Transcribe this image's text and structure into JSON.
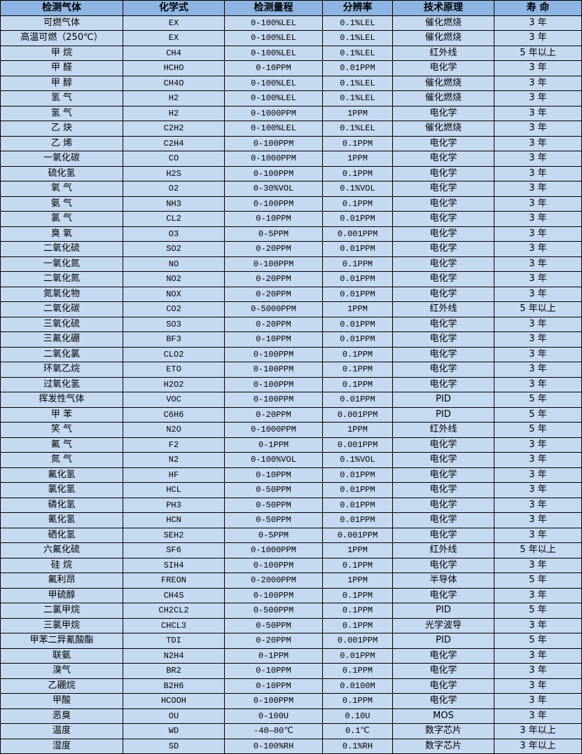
{
  "table": {
    "headers": [
      "检测气体",
      "化学式",
      "检测量程",
      "分辨率",
      "技术原理",
      "寿 命"
    ],
    "rows": [
      [
        "可燃气体",
        "EX",
        "0-100%LEL",
        "0.1%LEL",
        "催化燃烧",
        "3 年"
      ],
      [
        "高温可燃（250℃）",
        "EX",
        "0-100%LEL",
        "0.1%LEL",
        "催化燃烧",
        "3 年"
      ],
      [
        "甲 烷",
        "CH4",
        "0-100%LEL",
        "0.1%LEL",
        "红外线",
        "5 年以上"
      ],
      [
        "甲 醛",
        "HCHO",
        "0-10PPM",
        "0.01PPM",
        "电化学",
        "3 年"
      ],
      [
        "甲 醇",
        "CH4O",
        "0-100%LEL",
        "0.1%LEL",
        "催化燃烧",
        "3 年"
      ],
      [
        "氢 气",
        "H2",
        "0-100%LEL",
        "0.1%LEL",
        "催化燃烧",
        "3 年"
      ],
      [
        "氢 气",
        "H2",
        "0-1000PPM",
        "1PPM",
        "电化学",
        "3 年"
      ],
      [
        "乙 炔",
        "C2H2",
        "0-100%LEL",
        "0.1%LEL",
        "催化燃烧",
        "3 年"
      ],
      [
        "乙 烯",
        "C2H4",
        "0-100PPM",
        "0.1PPM",
        "电化学",
        "3 年"
      ],
      [
        "一氧化碳",
        "CO",
        "0-1000PPM",
        "1PPM",
        "电化学",
        "3 年"
      ],
      [
        "硫化氢",
        "H2S",
        "0-100PPM",
        "0.1PPM",
        "电化学",
        "3 年"
      ],
      [
        "氧 气",
        "O2",
        "0-30%VOL",
        "0.1%VOL",
        "电化学",
        "3 年"
      ],
      [
        "氨 气",
        "NH3",
        "0-100PPM",
        "0.1PPM",
        "电化学",
        "3 年"
      ],
      [
        "氯 气",
        "CL2",
        "0-10PPM",
        "0.01PPM",
        "电化学",
        "3 年"
      ],
      [
        "臭 氧",
        "O3",
        "0-5PPM",
        "0.001PPM",
        "电化学",
        "3 年"
      ],
      [
        "二氧化硫",
        "SO2",
        "0-20PPM",
        "0.01PPM",
        "电化学",
        "3 年"
      ],
      [
        "一氧化氮",
        "NO",
        "0-100PPM",
        "0.1PPM",
        "电化学",
        "3 年"
      ],
      [
        "二氧化氮",
        "NO2",
        "0-20PPM",
        "0.01PPM",
        "电化学",
        "3 年"
      ],
      [
        "氮氧化物",
        "NOX",
        "0-20PPM",
        "0.01PPM",
        "电化学",
        "3 年"
      ],
      [
        "二氧化碳",
        "CO2",
        "0-5000PPM",
        "1PPM",
        "红外线",
        "5 年以上"
      ],
      [
        "三氧化硫",
        "SO3",
        "0-20PPM",
        "0.01PPM",
        "电化学",
        "3 年"
      ],
      [
        "三氟化硼",
        "BF3",
        "0-10PPM",
        "0.01PPM",
        "电化学",
        "3 年"
      ],
      [
        "二氧化氯",
        "CLO2",
        "0-100PPM",
        "0.1PPM",
        "电化学",
        "3 年"
      ],
      [
        "环氧乙烷",
        "ETO",
        "0-100PPM",
        "0.1PPM",
        "电化学",
        "3 年"
      ],
      [
        "过氧化氢",
        "H2O2",
        "0-100PPM",
        "0.1PPM",
        "电化学",
        "3 年"
      ],
      [
        "挥发性气体",
        "VOC",
        "0-100PPM",
        "0.01PPM",
        "PID",
        "5 年"
      ],
      [
        "甲 苯",
        "C6H6",
        "0-20PPM",
        "0.001PPM",
        "PID",
        "5 年"
      ],
      [
        "笑 气",
        "N2O",
        "0-1000PPM",
        "1PPM",
        "红外线",
        "5 年"
      ],
      [
        "氟 气",
        "F2",
        "0-1PPM",
        "0.001PPM",
        "电化学",
        "3 年"
      ],
      [
        "氮 气",
        "N2",
        "0-100%VOL",
        "0.1%VOL",
        "电化学",
        "3 年"
      ],
      [
        "氟化氢",
        "HF",
        "0-10PPM",
        "0.01PPM",
        "电化学",
        "3 年"
      ],
      [
        "氯化氢",
        "HCL",
        "0-50PPM",
        "0.01PPM",
        "电化学",
        "3 年"
      ],
      [
        "磷化氢",
        "PH3",
        "0-50PPM",
        "0.01PPM",
        "电化学",
        "3 年"
      ],
      [
        "氰化氢",
        "HCN",
        "0-50PPM",
        "0.01PPM",
        "电化学",
        "3 年"
      ],
      [
        "硒化氢",
        "SEH2",
        "0-5PPM",
        "0.001PPM",
        "电化学",
        "3 年"
      ],
      [
        "六氟化硫",
        "SF6",
        "0-1000PPM",
        "1PPM",
        "红外线",
        "5 年以上"
      ],
      [
        "硅 烷",
        "SIH4",
        "0-100PPM",
        "0.1PPM",
        "电化学",
        "3 年"
      ],
      [
        "氟利昂",
        "FREON",
        "0-2000PPM",
        "1PPM",
        "半导体",
        "5 年"
      ],
      [
        "甲硫醇",
        "CH4S",
        "0-100PPM",
        "0.1PPM",
        "电化学",
        "3 年"
      ],
      [
        "二氯甲烷",
        "CH2CL2",
        "0-500PPM",
        "0.1PPM",
        "PID",
        "5 年"
      ],
      [
        "三氯甲烷",
        "CHCL3",
        "0-50PPM",
        "0.1PPM",
        "光学波导",
        "3 年"
      ],
      [
        "甲苯二异氰酸酯",
        "TDI",
        "0-20PPM",
        "0.001PPM",
        "PID",
        "5 年"
      ],
      [
        "联氨",
        "N2H4",
        "0-1PPM",
        "0.01PPM",
        "电化学",
        "3 年"
      ],
      [
        "溴气",
        "BR2",
        "0-10PPM",
        "0.1PPM",
        "电化学",
        "3 年"
      ],
      [
        "乙硼烷",
        "B2H6",
        "0-10PPM",
        "0.0100M",
        "电化学",
        "3 年"
      ],
      [
        "甲酸",
        "HCOOH",
        "0-100PPM",
        "0.1PPM",
        "电化学",
        "3 年"
      ],
      [
        "恶臭",
        "OU",
        "0-100U",
        "0.10U",
        "MOS",
        "3 年"
      ],
      [
        "温度",
        "WD",
        "-40—80℃",
        "0.1℃",
        "数字芯片",
        "3 年以上"
      ],
      [
        "湿度",
        "SD",
        "0-100%RH",
        "0.1%RH",
        "数字芯片",
        "3 年以上"
      ]
    ]
  },
  "colors": {
    "header_bg": "#8db4e2",
    "row_bg": "#c5d9f1",
    "border": "#000000"
  }
}
